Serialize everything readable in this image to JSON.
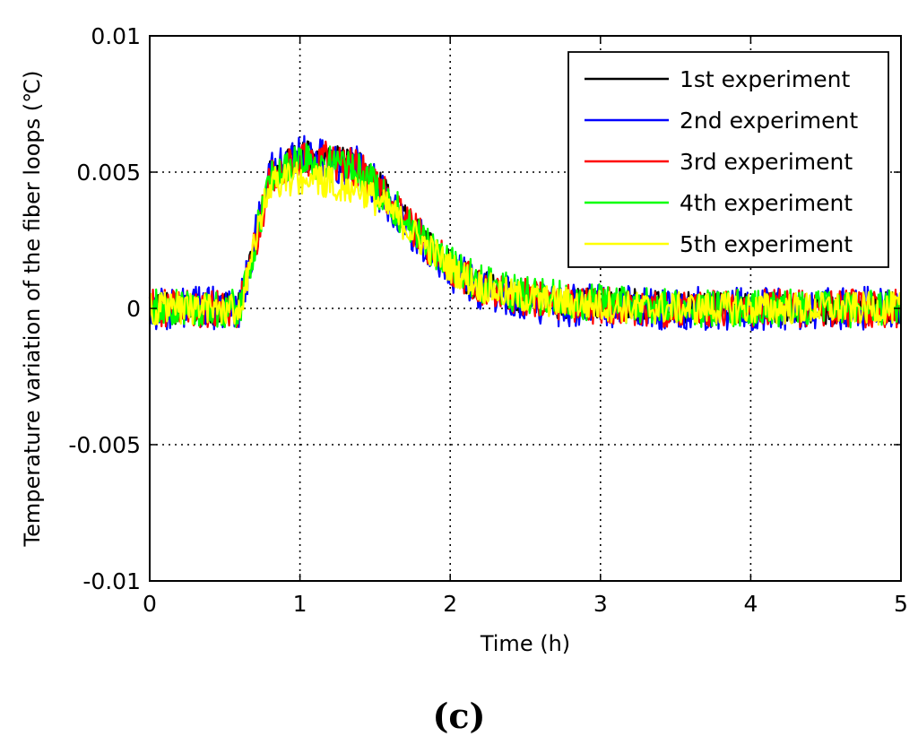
{
  "chart_data": {
    "type": "line",
    "title": "",
    "xlabel": "Time (h)",
    "ylabel": "Temperature variation of the fiber loops (℃)",
    "xlim": [
      0,
      5
    ],
    "ylim": [
      -0.01,
      0.01
    ],
    "xticks": [
      0,
      1,
      2,
      3,
      4,
      5
    ],
    "xtick_labels": [
      "0",
      "1",
      "2",
      "3",
      "4",
      "5"
    ],
    "yticks": [
      0.01,
      0.005,
      0,
      -0.005,
      -0.01
    ],
    "ytick_labels": [
      "0.01",
      "0.005",
      "0",
      "-0.005",
      "-0.01"
    ],
    "grid": true,
    "legend_position": "top-right",
    "series": [
      {
        "name": "1st experiment",
        "color": "#000000",
        "x": [
          0,
          0.6,
          0.8,
          1.0,
          1.2,
          1.4,
          1.6,
          1.8,
          2.0,
          2.2,
          2.4,
          2.6,
          2.8,
          3.0,
          3.3,
          3.6,
          4.0,
          4.5,
          5.0
        ],
        "y": [
          0,
          0,
          0.0048,
          0.0056,
          0.0055,
          0.0052,
          0.004,
          0.0026,
          0.0015,
          0.0008,
          0.0005,
          0.0003,
          0.0002,
          0.0002,
          0.0001,
          0,
          0,
          0,
          0
        ],
        "noise": 0.0006
      },
      {
        "name": "2nd experiment",
        "color": "#0000ff",
        "x": [
          0,
          0.6,
          0.8,
          1.0,
          1.2,
          1.4,
          1.6,
          1.8,
          2.0,
          2.2,
          2.4,
          2.6,
          2.8,
          3.0,
          3.3,
          3.6,
          4.0,
          4.5,
          5.0
        ],
        "y": [
          0,
          0,
          0.0049,
          0.0057,
          0.0055,
          0.0051,
          0.0039,
          0.0025,
          0.0014,
          0.0007,
          0.0004,
          0.0002,
          0.0001,
          0.0001,
          0,
          0,
          0,
          0,
          0
        ],
        "noise": 0.0008
      },
      {
        "name": "3rd experiment",
        "color": "#ff0000",
        "x": [
          0,
          0.6,
          0.8,
          1.0,
          1.2,
          1.4,
          1.6,
          1.8,
          2.0,
          2.2,
          2.4,
          2.6,
          2.8,
          3.0,
          3.3,
          3.6,
          4.0,
          4.5,
          5.0
        ],
        "y": [
          0,
          0,
          0.0047,
          0.0055,
          0.0055,
          0.0051,
          0.004,
          0.0026,
          0.0015,
          0.0008,
          0.0005,
          0.0003,
          0.0002,
          0.0001,
          0,
          0,
          0,
          0,
          0
        ],
        "noise": 0.0007
      },
      {
        "name": "4th experiment",
        "color": "#00ff00",
        "x": [
          0,
          0.6,
          0.8,
          1.0,
          1.2,
          1.4,
          1.6,
          1.8,
          2.0,
          2.2,
          2.4,
          2.6,
          2.8,
          3.0,
          3.3,
          3.6,
          4.0,
          4.5,
          5.0
        ],
        "y": [
          0,
          0,
          0.0048,
          0.0054,
          0.0053,
          0.005,
          0.0039,
          0.0026,
          0.0016,
          0.0009,
          0.0006,
          0.0004,
          0.0003,
          0.0002,
          0.0001,
          0,
          0,
          0,
          0
        ],
        "noise": 0.0007
      },
      {
        "name": "5th experiment",
        "color": "#ffff00",
        "x": [
          0,
          0.6,
          0.8,
          1.0,
          1.2,
          1.4,
          1.6,
          1.8,
          2.0,
          2.2,
          2.4,
          2.6,
          2.8,
          3.0,
          3.3,
          3.6,
          4.0,
          4.5,
          5.0
        ],
        "y": [
          0,
          0,
          0.0046,
          0.0048,
          0.0046,
          0.0044,
          0.0036,
          0.0025,
          0.0015,
          0.0008,
          0.0005,
          0.0003,
          0.0002,
          0.0001,
          0,
          0,
          0,
          0,
          0
        ],
        "noise": 0.0006
      }
    ]
  },
  "caption": "(c)"
}
